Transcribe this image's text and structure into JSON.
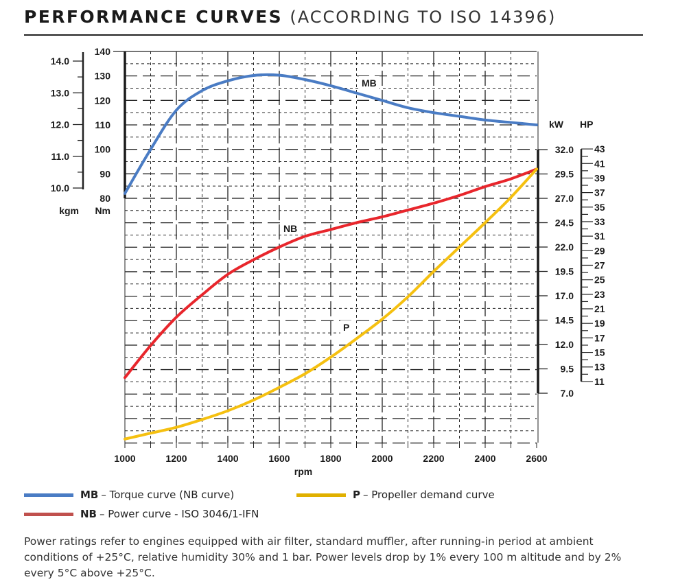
{
  "title": {
    "main": "PERFORMANCE CURVES",
    "sub": "(ACCORDING TO ISO 14396)"
  },
  "chart_data": {
    "type": "line",
    "title": "PERFORMANCE CURVES (ACCORDING TO ISO 14396)",
    "xlabel": "rpm",
    "x": [
      1000,
      1100,
      1200,
      1300,
      1400,
      1500,
      1600,
      1700,
      1800,
      1900,
      2000,
      2100,
      2200,
      2300,
      2400,
      2500,
      2600
    ],
    "xlim": [
      1000,
      2600
    ],
    "xticks": [
      1000,
      1200,
      1400,
      1600,
      1800,
      2000,
      2200,
      2400,
      2600
    ],
    "grid": true,
    "axes": {
      "torque_nm": {
        "unit": "Nm",
        "range": [
          80,
          140
        ],
        "ticks": [
          80,
          90,
          100,
          110,
          120,
          130,
          140
        ]
      },
      "torque_kgm": {
        "unit": "kgm",
        "range": [
          10.0,
          14.0
        ],
        "ticks": [
          "10.0",
          "11.0",
          "12.0",
          "13.0",
          "14.0"
        ]
      },
      "power_kw": {
        "unit": "kW",
        "range": [
          7.0,
          32.0
        ],
        "ticks": [
          "7.0",
          "9.5",
          "12.0",
          "14.5",
          "17.0",
          "19.5",
          "22.0",
          "24.5",
          "27.0",
          "29.5",
          "32.0"
        ]
      },
      "power_hp": {
        "unit": "HP",
        "range": [
          11,
          43
        ],
        "ticks": [
          11,
          13,
          15,
          17,
          19,
          21,
          23,
          25,
          27,
          29,
          31,
          33,
          35,
          37,
          39,
          41,
          43
        ]
      }
    },
    "series": [
      {
        "name": "MB",
        "axis": "torque_nm",
        "color": "#4a7cc4",
        "values": [
          82,
          100,
          116,
          124,
          128,
          130.2,
          130.3,
          128.5,
          126,
          123,
          120,
          117,
          115,
          113.5,
          112,
          111,
          110
        ]
      },
      {
        "name": "NB",
        "axis": "power_kw",
        "color": "#e8262c",
        "values": [
          8.6,
          11.9,
          14.8,
          17.1,
          19.2,
          20.7,
          22.0,
          23.1,
          23.8,
          24.5,
          25.1,
          25.8,
          26.5,
          27.3,
          28.2,
          29.0,
          30.0
        ]
      },
      {
        "name": "P",
        "axis": "power_kw",
        "color": "#f5c010",
        "values": [
          2.3,
          2.9,
          3.5,
          4.3,
          5.2,
          6.3,
          7.6,
          9.0,
          10.7,
          12.6,
          14.6,
          16.9,
          19.5,
          22.0,
          24.5,
          27.1,
          30.0
        ]
      }
    ]
  },
  "legend": [
    {
      "code": "MB",
      "text": "– Torque curve (NB curve)",
      "color": "#4a7cc4"
    },
    {
      "code": "P",
      "text": "– Propeller demand curve",
      "color": "#e0b000"
    },
    {
      "code": "NB",
      "text": "– Power curve - ISO 3046/1-IFN",
      "color": "#c0504d"
    }
  ],
  "note": "Power ratings refer to engines equipped with air filter, standard muffler, after running-in period at ambient conditions of +25°C, relative humidity 30% and 1 bar. Power levels drop by 1% every 100 m altitude and by 2% every 5°C above +25°C."
}
